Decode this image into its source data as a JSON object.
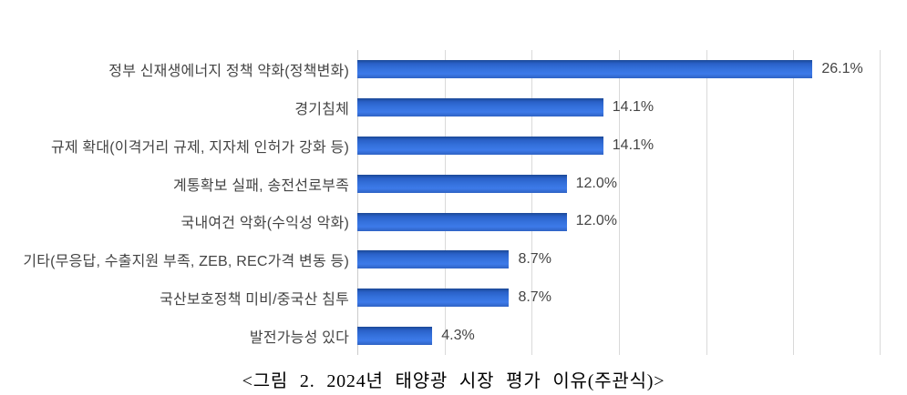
{
  "chart_data": {
    "type": "bar",
    "orientation": "horizontal",
    "title": "<그림 2. 2024년 태양광 시장 평가 이유(주관식)>",
    "categories": [
      "정부 신재생에너지 정책 약화(정책변화)",
      "경기침체",
      "규제 확대(이격거리 규제, 지자체 인허가 강화 등)",
      "계통확보 실패, 송전선로부족",
      "국내여건 악화(수익성 악화)",
      "기타(무응답, 수출지원 부족, ZEB, REC가격 변동 등)",
      "국산보호정책 미비/중국산 침투",
      "발전가능성 있다"
    ],
    "values": [
      26.1,
      14.1,
      14.1,
      12.0,
      12.0,
      8.7,
      8.7,
      4.3
    ],
    "value_labels": [
      "26.1%",
      "14.1%",
      "14.1%",
      "12.0%",
      "12.0%",
      "8.7%",
      "8.7%",
      "4.3%"
    ],
    "xlabel": "",
    "ylabel": "",
    "xlim": [
      0,
      30
    ],
    "gridline_step": 5,
    "grid": true,
    "legend": "none",
    "colors": {
      "bar_top": "#1b4896",
      "bar_upper": "#2a61c8",
      "bar_mid": "#336fda",
      "bar_bright": "#3d7ae9",
      "bar_bottom": "#2e63c4",
      "gridline": "#d9d9d9",
      "axis_line": "#cccccc",
      "label_text": "#444444",
      "caption_text": "#000000",
      "background": "#ffffff"
    }
  }
}
